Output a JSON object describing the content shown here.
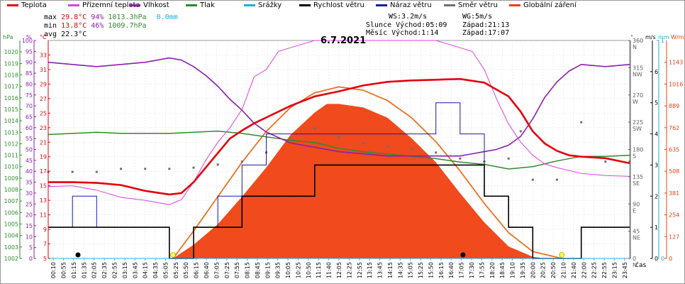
{
  "legend": [
    {
      "label": "Teplota",
      "color": "#e3000f"
    },
    {
      "label": "Přízemní teplota",
      "color": "#e040e0"
    },
    {
      "label": "Vlhkost",
      "color": "#8b1fb0"
    },
    {
      "label": "Tlak",
      "color": "#2e8b2e"
    },
    {
      "label": "Srážky",
      "color": "#18b0d8"
    },
    {
      "label": "Rychlost větru",
      "color": "#000000"
    },
    {
      "label": "Náraz větru",
      "color": "#1a1aa8"
    },
    {
      "label": "Směr větru",
      "color": "#707070"
    },
    {
      "label": "Globální záření",
      "color": "#f04010"
    }
  ],
  "stats": {
    "max": {
      "label": "max",
      "temp": "29.8°C",
      "hum": "94%",
      "press": "1013.3hPa",
      "rain": "0.0mm"
    },
    "min": {
      "label": "min",
      "temp": "13.8°C",
      "hum": "46%",
      "press": "1009.7hPa"
    },
    "avg": {
      "label": "avg",
      "temp": "22.3°C"
    }
  },
  "info": {
    "ws": "WS:3.2m/s",
    "wg": "WG:5m/s",
    "sun_label": "Slunce",
    "sun_rise": "Východ:05:09",
    "sun_set": "Západ:21:13",
    "moon_label": "Měsíc",
    "moon_rise": "Východ:1:14",
    "moon_set": "Západ:17:07"
  },
  "date": "6.7.2021",
  "axis_units": {
    "hpa": "hPa",
    "pct": "%",
    "degc": "°C",
    "ms": "m/s",
    "mm": "mm",
    "wm2": "W/m2",
    "deg": "°",
    "time": "čas"
  },
  "chart_data": {
    "type": "line",
    "title": "6.7.2021",
    "xlabel": "čas",
    "x_ticks": [
      "00:10",
      "00:55",
      "01:15",
      "01:35",
      "02:05",
      "02:35",
      "02:55",
      "03:15",
      "03:45",
      "04:15",
      "04:35",
      "05:05",
      "05:25",
      "05:50",
      "06:15",
      "06:40",
      "07:05",
      "07:25",
      "07:55",
      "08:15",
      "08:45",
      "09:15",
      "09:35",
      "10:05",
      "10:25",
      "10:50",
      "11:15",
      "11:40",
      "12:05",
      "12:25",
      "12:55",
      "13:15",
      "13:45",
      "14:15",
      "14:35",
      "15:05",
      "15:25",
      "15:50",
      "16:15",
      "16:40",
      "17:05",
      "17:30",
      "17:55",
      "18:20",
      "18:45",
      "19:10",
      "19:35",
      "20:00",
      "20:25",
      "20:50",
      "21:10",
      "21:40",
      "22:00",
      "22:25",
      "22:55",
      "23:15",
      "23:45"
    ],
    "axes": {
      "pressure_hpa": {
        "ylim": [
          1002,
          1021
        ],
        "ticks": [
          1002,
          1003,
          1004,
          1005,
          1006,
          1007,
          1008,
          1009,
          1010,
          1011,
          1012,
          1013,
          1014,
          1015,
          1016,
          1017,
          1018,
          1019,
          1020
        ]
      },
      "humidity_pct": {
        "ylim": [
          0,
          100
        ],
        "ticks": [
          0,
          5,
          10,
          15,
          20,
          25,
          30,
          35,
          40,
          45,
          50,
          55,
          60,
          65,
          70,
          75,
          80,
          85,
          90,
          95,
          100
        ]
      },
      "temperature_c": {
        "ylim": [
          5,
          35
        ],
        "ticks": [
          5,
          7,
          9,
          11,
          13,
          15,
          17,
          19,
          21,
          23,
          25,
          27,
          29,
          31,
          33
        ]
      },
      "wind_direction_deg": {
        "ylim": [
          0,
          360
        ],
        "ticks": [
          0,
          45,
          90,
          135,
          180,
          225,
          270,
          315,
          360
        ],
        "labels": [
          "N",
          "NE",
          "E",
          "SE",
          "S",
          "SW",
          "W",
          "NW",
          "N"
        ]
      },
      "wind_speed_ms": {
        "ylim": [
          0,
          7
        ],
        "ticks": [
          0,
          1,
          2,
          3,
          4,
          5,
          6
        ]
      },
      "rain_mm": {
        "ylim": [
          0,
          1
        ],
        "ticks": [
          0,
          1
        ]
      },
      "radiation_wm2": {
        "ylim": [
          0,
          1270
        ],
        "ticks": [
          0,
          127,
          254,
          381,
          508,
          635,
          762,
          889,
          1016,
          1143
        ]
      }
    },
    "series": [
      {
        "name": "Teplota",
        "axis": "temperature_c",
        "color": "#e3000f",
        "x": [
          0,
          1,
          2,
          3,
          4,
          5,
          5.5,
          6,
          6.5,
          7,
          7.5,
          8,
          8.5,
          9,
          10,
          11,
          12,
          13,
          14,
          15,
          16,
          17,
          18,
          19,
          19.5,
          20,
          20.5,
          21,
          21.5,
          22,
          23,
          24
        ],
        "y": [
          15.5,
          15.5,
          15.4,
          15.1,
          14.3,
          13.8,
          14.0,
          15.5,
          17.5,
          19.5,
          21.5,
          22.6,
          23.6,
          24.4,
          26.0,
          27.3,
          28.0,
          28.8,
          29.3,
          29.5,
          29.6,
          29.7,
          29.2,
          27.3,
          25.2,
          22.5,
          20.8,
          19.8,
          19.2,
          19.0,
          18.8,
          18.1
        ]
      },
      {
        "name": "Přízemní teplota",
        "axis": "temperature_c",
        "color": "#e040e0",
        "x": [
          0,
          1,
          2,
          3,
          4,
          5,
          5.5,
          6,
          6.5,
          7,
          7.5,
          8,
          8.5,
          9,
          9.5,
          10,
          11,
          12,
          13,
          14,
          15,
          16,
          17,
          17.5,
          18,
          18.5,
          19,
          19.5,
          20,
          20.5,
          21,
          22,
          23,
          24
        ],
        "y": [
          14.9,
          15,
          14.4,
          13.4,
          13.0,
          12.4,
          13.1,
          15.5,
          18.5,
          21.0,
          23.0,
          25.5,
          30.0,
          31.0,
          33.5,
          34.0,
          35.0,
          35.0,
          35.0,
          35.0,
          35.0,
          35.0,
          34.0,
          33.5,
          31.0,
          27.0,
          23.5,
          21.0,
          19.2,
          18.0,
          17.5,
          16.7,
          16.4,
          16.3
        ]
      },
      {
        "name": "Vlhkost",
        "axis": "humidity_pct",
        "color": "#8b1fb0",
        "x": [
          0,
          1,
          2,
          3,
          4,
          5,
          5.5,
          6,
          6.5,
          7,
          7.5,
          8,
          8.5,
          9,
          10,
          11,
          12,
          13,
          14,
          15,
          16,
          17,
          17.5,
          18,
          18.5,
          19,
          19.5,
          20,
          20.5,
          21,
          21.5,
          22,
          23,
          24
        ],
        "y": [
          90,
          89,
          88,
          89,
          90,
          92,
          91,
          88,
          84,
          79,
          73,
          68,
          62,
          58,
          53,
          51,
          49,
          48,
          47,
          47,
          47,
          47,
          48,
          49,
          50,
          52,
          56,
          64,
          74,
          81,
          86,
          89,
          88,
          89
        ]
      },
      {
        "name": "Tlak",
        "axis": "pressure_hpa",
        "color": "#2e8b2e",
        "x": [
          0,
          1,
          2,
          3,
          4,
          5,
          6,
          7,
          8,
          9,
          10,
          11,
          12,
          13,
          14,
          15,
          16,
          17,
          18,
          19,
          20,
          21,
          22,
          23,
          24
        ],
        "y": [
          1012.8,
          1012.9,
          1013.0,
          1012.9,
          1012.9,
          1012.9,
          1013.0,
          1013.1,
          1012.9,
          1012.6,
          1012.3,
          1012.1,
          1011.6,
          1011.3,
          1011.1,
          1010.9,
          1010.7,
          1010.4,
          1010.2,
          1009.8,
          1010.0,
          1010.5,
          1010.9,
          1010.9,
          1011.0
        ]
      },
      {
        "name": "Srážky",
        "axis": "rain_mm",
        "color": "#18b0d8",
        "x": [
          0,
          24
        ],
        "y": [
          0,
          0
        ]
      },
      {
        "name": "Rychlost větru",
        "axis": "wind_speed_ms",
        "color": "#000000",
        "x": [
          0,
          1,
          2,
          3,
          4,
          5,
          6,
          7,
          8,
          9,
          10,
          11,
          12,
          13,
          14,
          15,
          16,
          17,
          18,
          19,
          20,
          21,
          22,
          23,
          24
        ],
        "y": [
          1,
          1,
          1,
          1,
          1,
          0,
          1,
          1,
          2,
          2,
          2,
          3,
          3,
          3,
          3,
          3,
          3,
          3,
          2,
          1,
          0,
          0,
          1,
          1,
          1
        ]
      },
      {
        "name": "Náraz větru",
        "axis": "wind_speed_ms",
        "color": "#1a1aa8",
        "x": [
          0,
          1,
          2,
          3,
          4,
          5,
          6,
          7,
          8,
          9,
          10,
          11,
          12,
          13,
          14,
          15,
          16,
          17,
          18,
          19,
          20,
          21,
          22,
          23,
          24
        ],
        "y": [
          1,
          2,
          1,
          1,
          1,
          0,
          1,
          2,
          3,
          4,
          4,
          4,
          4,
          4,
          4,
          4,
          5,
          4,
          2,
          1,
          0,
          0,
          1,
          1,
          1
        ]
      },
      {
        "name": "Směr větru",
        "axis": "wind_direction_deg",
        "color": "#707070",
        "x": [
          0,
          1,
          2,
          3,
          4,
          5,
          6,
          7,
          8,
          9,
          10,
          11,
          12,
          13,
          14,
          15,
          16,
          17,
          18,
          19,
          19.5,
          20,
          21,
          22,
          23,
          24
        ],
        "y": [
          143,
          143,
          143,
          148,
          148,
          148,
          150,
          155,
          160,
          175,
          200,
          215,
          200,
          190,
          185,
          180,
          175,
          165,
          160,
          165,
          210,
          130,
          130,
          225,
          160,
          160
        ]
      },
      {
        "name": "Globální záření",
        "axis": "radiation_wm2",
        "color": "#f04010",
        "x": [
          5.15,
          6,
          7,
          8,
          9,
          10,
          11,
          11.5,
          12,
          13,
          14,
          15,
          16,
          17,
          18,
          19,
          20,
          20.5,
          21.2
        ],
        "y": [
          0,
          80,
          200,
          360,
          530,
          720,
          850,
          900,
          900,
          880,
          820,
          700,
          560,
          380,
          210,
          70,
          10,
          0,
          0
        ]
      },
      {
        "name": "Globální záření (teoretické)",
        "axis": "radiation_wm2",
        "color": "#f07020",
        "x": [
          5.15,
          6,
          7,
          8,
          9,
          10,
          11,
          12,
          13,
          14,
          15,
          16,
          17,
          18,
          19,
          20,
          21.2
        ],
        "y": [
          0,
          160,
          360,
          560,
          740,
          880,
          965,
          1000,
          980,
          920,
          820,
          680,
          510,
          320,
          150,
          40,
          0
        ]
      }
    ],
    "sun_markers": [
      5.15,
      21.2
    ],
    "moon_markers": [
      1.23,
      17.12
    ]
  }
}
